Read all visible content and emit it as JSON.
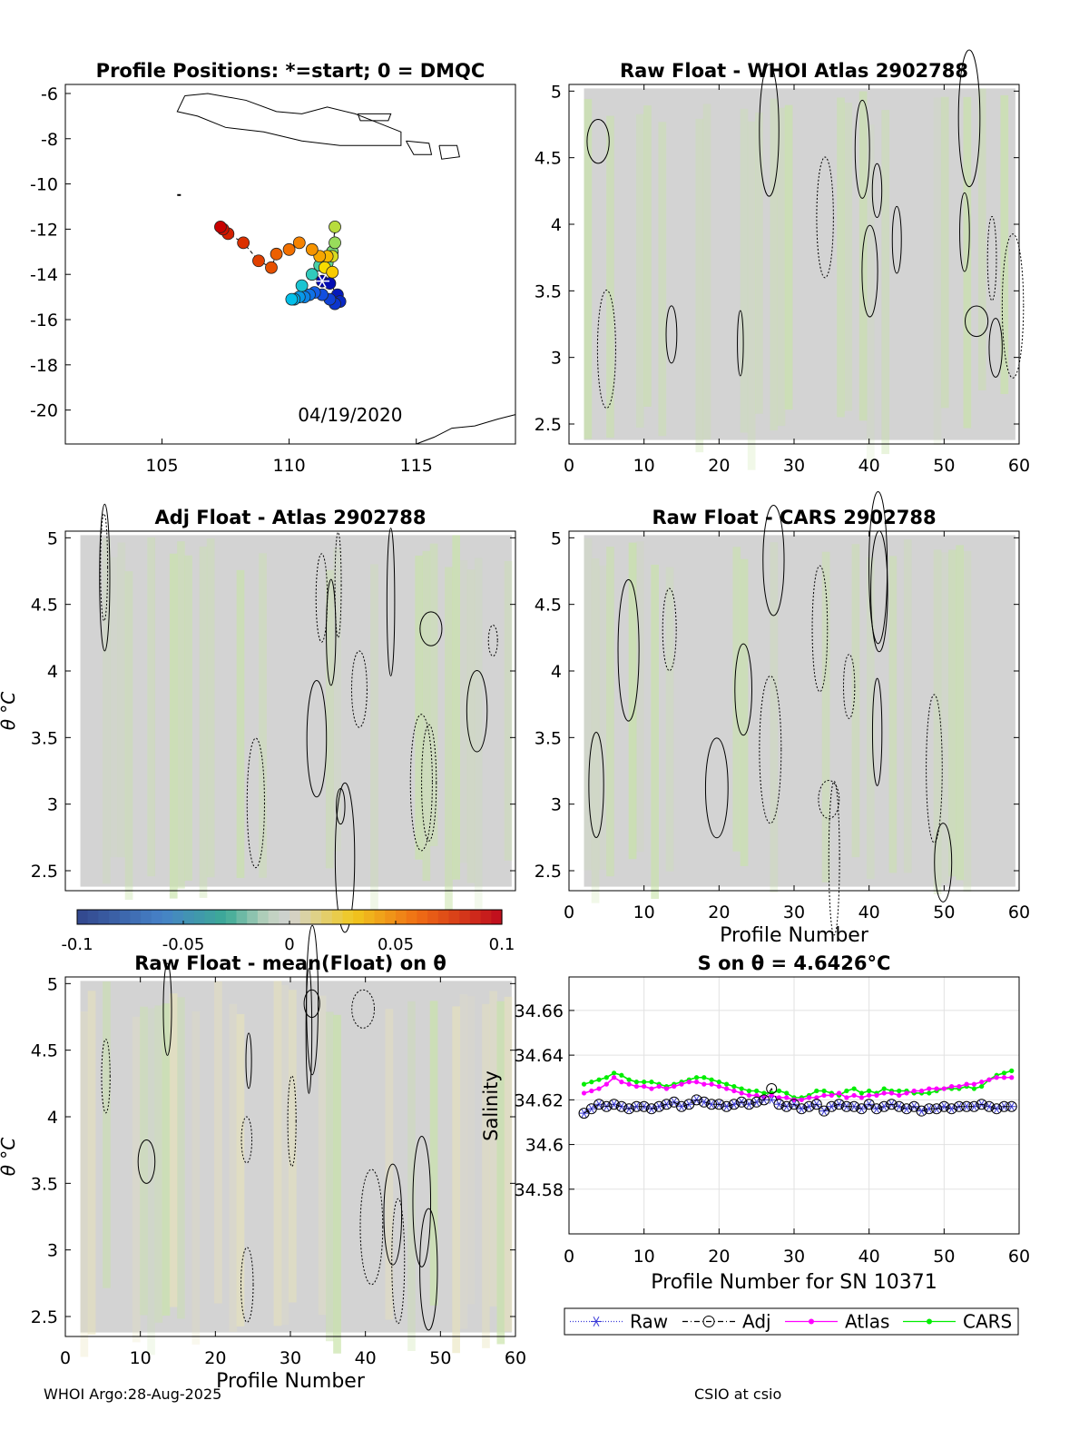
{
  "footer": {
    "left": "WHOI Argo:28-Aug-2025",
    "right": "CSIO at csio"
  },
  "colors": {
    "raw": "#3a3ad8",
    "adj": "#000000",
    "atlas": "#ff00ff",
    "cars": "#00ee00",
    "field": "#d3d3d3",
    "field_tint": "#c8e3a8"
  },
  "colorbar": {
    "ticks": [
      "-0.1",
      "-0.05",
      "0",
      "0.05",
      "0.1"
    ],
    "range": [
      -0.1,
      0.1
    ]
  },
  "chart_data": [
    {
      "id": "map",
      "type": "scatter",
      "title": "Profile Positions: *=start; 0 = DMQC",
      "annotation": "04/19/2020",
      "xlim": [
        101.2,
        118.9
      ],
      "ylim": [
        -21.5,
        -5.6
      ],
      "xticks": [
        "105",
        "110",
        "115"
      ],
      "yticks": [
        "-6",
        "-8",
        "-10",
        "-12",
        "-14",
        "-16",
        "-18",
        "-20"
      ],
      "track": [
        [
          111.3,
          -14.3
        ],
        [
          111.6,
          -14.4
        ],
        [
          111.9,
          -14.9
        ],
        [
          112.0,
          -15.2
        ],
        [
          111.8,
          -15.3
        ],
        [
          111.6,
          -15.1
        ],
        [
          111.3,
          -14.9
        ],
        [
          111.0,
          -14.8
        ],
        [
          110.8,
          -14.9
        ],
        [
          110.6,
          -15.0
        ],
        [
          110.4,
          -15.0
        ],
        [
          110.2,
          -15.1
        ],
        [
          110.1,
          -15.1
        ],
        [
          110.5,
          -14.5
        ],
        [
          110.9,
          -14.0
        ],
        [
          111.2,
          -13.6
        ],
        [
          111.5,
          -13.5
        ],
        [
          111.7,
          -13.0
        ],
        [
          111.8,
          -12.6
        ],
        [
          111.8,
          -11.9
        ],
        [
          111.7,
          -13.2
        ],
        [
          111.4,
          -13.7
        ],
        [
          111.7,
          -13.9
        ],
        [
          111.5,
          -13.2
        ],
        [
          111.2,
          -13.2
        ],
        [
          110.9,
          -12.9
        ],
        [
          110.4,
          -12.6
        ],
        [
          110.0,
          -12.9
        ],
        [
          109.5,
          -13.1
        ],
        [
          109.3,
          -13.7
        ],
        [
          108.8,
          -13.4
        ],
        [
          108.2,
          -12.6
        ],
        [
          107.6,
          -12.2
        ],
        [
          107.4,
          -12.0
        ],
        [
          107.3,
          -11.9
        ]
      ]
    },
    {
      "id": "raw-atlas",
      "type": "heatmap",
      "title": "Raw Float - WHOI Atlas  2902788",
      "xlim": [
        0,
        60
      ],
      "ylim": [
        2.35,
        5.05
      ],
      "xticks": [
        "0",
        "10",
        "20",
        "30",
        "40",
        "50",
        "60"
      ],
      "yticks": [
        "2.5",
        "3",
        "3.5",
        "4",
        "4.5",
        "5"
      ]
    },
    {
      "id": "adj-atlas",
      "type": "heatmap",
      "title": "Adj Float - Atlas  2902788",
      "ylabel": "θ °C",
      "xlim": [
        0,
        60
      ],
      "ylim": [
        2.35,
        5.05
      ],
      "xticks": [],
      "yticks": [
        "2.5",
        "3",
        "3.5",
        "4",
        "4.5",
        "5"
      ]
    },
    {
      "id": "raw-cars",
      "type": "heatmap",
      "title": "Raw Float - CARS  2902788",
      "xlabel": "Profile Number",
      "xlim": [
        0,
        60
      ],
      "ylim": [
        2.35,
        5.05
      ],
      "xticks": [
        "0",
        "10",
        "20",
        "30",
        "40",
        "50",
        "60"
      ],
      "yticks": [
        "2.5",
        "3",
        "3.5",
        "4",
        "4.5",
        "5"
      ]
    },
    {
      "id": "raw-mean",
      "type": "heatmap",
      "title": "Raw Float - mean(Float) on θ",
      "xlabel": "Profile Number",
      "ylabel": "θ °C",
      "xlim": [
        0,
        60
      ],
      "ylim": [
        2.35,
        5.05
      ],
      "xticks": [
        "0",
        "10",
        "20",
        "30",
        "40",
        "50",
        "60"
      ],
      "yticks": [
        "2.5",
        "3",
        "3.5",
        "4",
        "4.5",
        "5"
      ]
    },
    {
      "id": "salinity",
      "type": "line",
      "title": "S on θ = 4.6426°C",
      "xlabel": "Profile Number for SN 10371",
      "ylabel": "Salinity",
      "xlim": [
        0,
        60
      ],
      "ylim": [
        34.56,
        34.675
      ],
      "xticks": [
        "0",
        "10",
        "20",
        "30",
        "40",
        "50",
        "60"
      ],
      "yticks": [
        "34.58",
        "34.6",
        "34.62",
        "34.64",
        "34.66"
      ],
      "x": [
        2,
        3,
        4,
        5,
        6,
        7,
        8,
        9,
        10,
        11,
        12,
        13,
        14,
        15,
        16,
        17,
        18,
        19,
        20,
        21,
        22,
        23,
        24,
        25,
        26,
        27,
        28,
        29,
        30,
        31,
        32,
        33,
        34,
        35,
        36,
        37,
        38,
        39,
        40,
        41,
        42,
        43,
        44,
        45,
        46,
        47,
        48,
        49,
        50,
        51,
        52,
        53,
        54,
        55,
        56,
        57,
        58,
        59
      ],
      "series": [
        {
          "name": "Raw",
          "values": [
            34.614,
            34.616,
            34.618,
            34.617,
            34.618,
            34.617,
            34.616,
            34.617,
            34.617,
            34.616,
            34.617,
            34.618,
            34.619,
            34.617,
            34.618,
            34.62,
            34.619,
            34.618,
            34.618,
            34.617,
            34.618,
            34.619,
            34.618,
            34.619,
            34.62,
            34.62,
            34.618,
            34.617,
            34.618,
            34.616,
            34.617,
            34.618,
            34.615,
            34.617,
            34.618,
            34.617,
            34.617,
            34.616,
            34.618,
            34.616,
            34.617,
            34.618,
            34.617,
            34.616,
            34.617,
            34.615,
            34.616,
            34.616,
            34.617,
            34.616,
            34.617,
            34.617,
            34.617,
            34.618,
            34.617,
            34.616,
            34.617,
            34.617
          ]
        },
        {
          "name": "Adj",
          "values": [
            34.614,
            34.616,
            34.618,
            34.617,
            34.618,
            34.617,
            34.616,
            34.617,
            34.617,
            34.616,
            34.617,
            34.618,
            34.619,
            34.617,
            34.618,
            34.62,
            34.619,
            34.618,
            34.618,
            34.617,
            34.618,
            34.619,
            34.618,
            34.619,
            34.62,
            34.625,
            34.618,
            34.617,
            34.618,
            34.616,
            34.617,
            34.618,
            34.615,
            34.617,
            34.618,
            34.617,
            34.617,
            34.616,
            34.618,
            34.616,
            34.617,
            34.618,
            34.617,
            34.616,
            34.617,
            34.615,
            34.616,
            34.616,
            34.617,
            34.616,
            34.617,
            34.617,
            34.617,
            34.618,
            34.617,
            34.616,
            34.617,
            34.617
          ]
        },
        {
          "name": "Atlas",
          "values": [
            34.623,
            34.624,
            34.625,
            34.627,
            34.63,
            34.628,
            34.627,
            34.626,
            34.626,
            34.625,
            34.626,
            34.625,
            34.626,
            34.627,
            34.628,
            34.628,
            34.627,
            34.627,
            34.626,
            34.625,
            34.624,
            34.623,
            34.622,
            34.622,
            34.621,
            34.622,
            34.621,
            34.621,
            34.62,
            34.62,
            34.621,
            34.621,
            34.622,
            34.622,
            34.623,
            34.621,
            34.622,
            34.621,
            34.622,
            34.622,
            34.623,
            34.623,
            34.622,
            34.623,
            34.624,
            34.624,
            34.625,
            34.625,
            34.625,
            34.626,
            34.626,
            34.627,
            34.627,
            34.628,
            34.629,
            34.63,
            34.63,
            34.63
          ]
        },
        {
          "name": "CARS",
          "values": [
            34.627,
            34.628,
            34.629,
            34.63,
            34.632,
            34.631,
            34.629,
            34.628,
            34.628,
            34.628,
            34.627,
            34.626,
            34.627,
            34.628,
            34.629,
            34.63,
            34.63,
            34.629,
            34.628,
            34.627,
            34.626,
            34.625,
            34.624,
            34.624,
            34.623,
            34.623,
            34.624,
            34.623,
            34.621,
            34.621,
            34.622,
            34.624,
            34.624,
            34.623,
            34.622,
            34.624,
            34.625,
            34.623,
            34.624,
            34.623,
            34.625,
            34.624,
            34.624,
            34.624,
            34.623,
            34.623,
            34.623,
            34.624,
            34.625,
            34.625,
            34.625,
            34.626,
            34.625,
            34.626,
            34.629,
            34.631,
            34.632,
            34.633
          ]
        }
      ],
      "legend": [
        "Raw",
        "Adj",
        "Atlas",
        "CARS"
      ]
    }
  ]
}
